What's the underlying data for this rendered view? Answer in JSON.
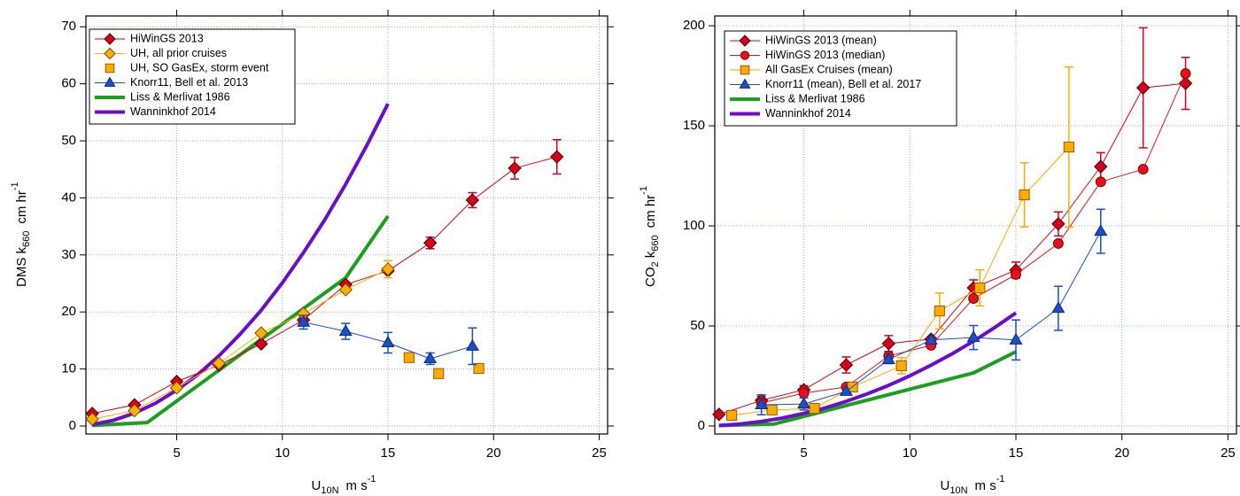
{
  "chart_data": [
    {
      "type": "line",
      "legend": "upper left",
      "grid": true,
      "xlim": [
        0.7,
        25.4
      ],
      "ylim": [
        -1.4,
        71.9
      ],
      "xticks": [
        5,
        10,
        15,
        20,
        25
      ],
      "yticks": [
        0,
        10,
        20,
        30,
        40,
        50,
        60,
        70
      ],
      "x_label": {
        "text": "U",
        "sub": "10N",
        "unit": "m s",
        "sup": "-1"
      },
      "y_label": {
        "text": "DMS k",
        "sub": "660",
        "unit": "cm hr",
        "sup": "-1"
      },
      "series": [
        {
          "name": "Liss & Merlivat 1986",
          "color": "#1e9e1e",
          "marker": "none",
          "connect": true,
          "line_width": 4,
          "x": [
            1,
            3.6,
            13,
            15
          ],
          "values": [
            0.1,
            0.6,
            26,
            36.8
          ]
        },
        {
          "name": "Wanninkhof 2014",
          "color": "#6a0dcc",
          "marker": "none",
          "connect": true,
          "line_width": 4,
          "x": [
            1,
            2,
            3,
            4,
            5,
            6,
            7,
            8,
            9,
            10,
            11,
            12,
            13,
            14,
            15
          ],
          "values": [
            0.25,
            1.0,
            2.26,
            4.0,
            6.3,
            9.0,
            12.3,
            16.1,
            20.3,
            25.1,
            30.4,
            36.1,
            42.4,
            49.2,
            56.5
          ]
        },
        {
          "name": "HiWinGS 2013",
          "color": "#d6001c",
          "edge_color": "#4a0000",
          "marker": "diamond",
          "connect": true,
          "line_width": 1,
          "x": [
            1,
            3,
            5,
            7,
            9,
            11,
            13,
            15,
            17,
            19,
            21,
            23
          ],
          "values": [
            2.2,
            3.7,
            7.8,
            10.7,
            14.4,
            18.6,
            24.8,
            27.2,
            32.1,
            39.6,
            45.2,
            47.2
          ],
          "errors": [
            null,
            null,
            null,
            null,
            null,
            1,
            null,
            null,
            1,
            1.3,
            1.9,
            3
          ]
        },
        {
          "name": "UH, all prior cruises",
          "color": "#ffb000",
          "edge_color": "#7a4a00",
          "marker": "diamond",
          "connect": true,
          "line_width": 1,
          "x": [
            1,
            3,
            5,
            7,
            9,
            11,
            13,
            15
          ],
          "values": [
            1.2,
            2.7,
            6.7,
            11.0,
            16.3,
            19.7,
            23.9,
            27.5
          ],
          "errors": [
            null,
            null,
            null,
            null,
            null,
            null,
            null,
            1.5
          ]
        },
        {
          "name": "UH, SO GasEx, storm event",
          "color": "#ffaa00",
          "edge_color": "#9a5a00",
          "marker": "square",
          "connect": false,
          "line_width": 1,
          "x": [
            16,
            17.4,
            19.3
          ],
          "values": [
            12.0,
            9.2,
            10.1
          ]
        },
        {
          "name": "Knorr11, Bell et al. 2013",
          "color": "#1c4fc6",
          "edge_color": "#0a2a80",
          "marker": "triangle",
          "connect": true,
          "line_width": 1,
          "x": [
            11,
            13,
            15,
            17,
            19
          ],
          "values": [
            18.2,
            16.6,
            14.6,
            11.8,
            14.0
          ],
          "errors": [
            1.2,
            1.4,
            1.8,
            1.0,
            3.2
          ]
        }
      ],
      "legend_order": [
        2,
        3,
        4,
        5,
        0,
        1
      ]
    },
    {
      "type": "line",
      "legend": "upper left",
      "grid": true,
      "xlim": [
        0.8,
        25.4
      ],
      "ylim": [
        -4,
        204.9
      ],
      "xticks": [
        5,
        10,
        15,
        20,
        25
      ],
      "yticks": [
        0,
        50,
        100,
        150,
        200
      ],
      "x_label": {
        "text": "U",
        "sub": "10N",
        "unit": "m s",
        "sup": "-1"
      },
      "y_label": {
        "text": "CO",
        "sub2": "2",
        "text2": " k",
        "sub": "660",
        "unit": "cm hr",
        "sup": "-1"
      },
      "series": [
        {
          "name": "Liss & Merlivat 1986",
          "color": "#1e9e1e",
          "marker": "none",
          "connect": true,
          "line_width": 4,
          "x": [
            1,
            3.6,
            13,
            15
          ],
          "values": [
            0.2,
            1,
            26.5,
            37.1
          ]
        },
        {
          "name": "Wanninkhof 2014",
          "color": "#6a0dcc",
          "marker": "none",
          "connect": true,
          "line_width": 4,
          "x": [
            1,
            2,
            3,
            4,
            5,
            6,
            7,
            8,
            9,
            10,
            11,
            12,
            13,
            14,
            15
          ],
          "values": [
            0.25,
            1.0,
            2.26,
            4.0,
            6.3,
            9.0,
            12.3,
            16.1,
            20.3,
            25.1,
            30.4,
            36.1,
            42.4,
            49.2,
            56.5
          ]
        },
        {
          "name": "HiWinGS 2013 (mean)",
          "color": "#d6001c",
          "edge_color": "#4a0000",
          "marker": "diamond",
          "connect": true,
          "line_width": 1,
          "x": [
            1,
            3,
            5,
            7,
            9,
            11,
            13,
            15,
            17,
            19,
            21,
            23
          ],
          "values": [
            5.8,
            12.8,
            18.1,
            30.5,
            41.2,
            43.4,
            69,
            77.9,
            101,
            129.6,
            169,
            171.2
          ],
          "errors": [
            null,
            2,
            2,
            4,
            4,
            null,
            4,
            4,
            6,
            7,
            30,
            13
          ]
        },
        {
          "name": "HiWinGS 2013 (median)",
          "color": "#e8101c",
          "edge_color": "#7a0000",
          "marker": "circle",
          "connect": true,
          "line_width": 1,
          "x": [
            3,
            5,
            7,
            9,
            11,
            13,
            15,
            17,
            19,
            21,
            23
          ],
          "values": [
            11.5,
            16.4,
            19.5,
            35,
            40.3,
            63.7,
            75.7,
            91.2,
            122,
            128.3,
            176.1
          ]
        },
        {
          "name": "All GasEx Cruises (mean)",
          "color": "#ffaa00",
          "edge_color": "#9a5a00",
          "marker": "square",
          "connect": true,
          "line_width": 1,
          "x": [
            1.6,
            3.5,
            5.5,
            7.3,
            9.6,
            11.4,
            13.3,
            15.4,
            17.5
          ],
          "values": [
            5.3,
            8,
            8.8,
            19.5,
            30.1,
            57.5,
            69,
            115.5,
            139.4
          ],
          "errors": [
            null,
            null,
            null,
            null,
            4,
            9,
            9,
            16,
            40
          ]
        },
        {
          "name": "Knorr11 (mean), Bell et al. 2017",
          "color": "#1c4fc6",
          "edge_color": "#0a2a80",
          "marker": "triangle",
          "connect": true,
          "line_width": 1,
          "x": [
            3,
            5,
            7,
            9,
            11,
            13,
            15,
            17,
            19
          ],
          "values": [
            10.6,
            11,
            17.3,
            33.2,
            43,
            44.2,
            43,
            58.8,
            97.3
          ],
          "errors": [
            5,
            3,
            null,
            2,
            null,
            6,
            10,
            11,
            11
          ]
        }
      ],
      "legend_order": [
        2,
        3,
        4,
        5,
        0,
        1
      ]
    }
  ]
}
